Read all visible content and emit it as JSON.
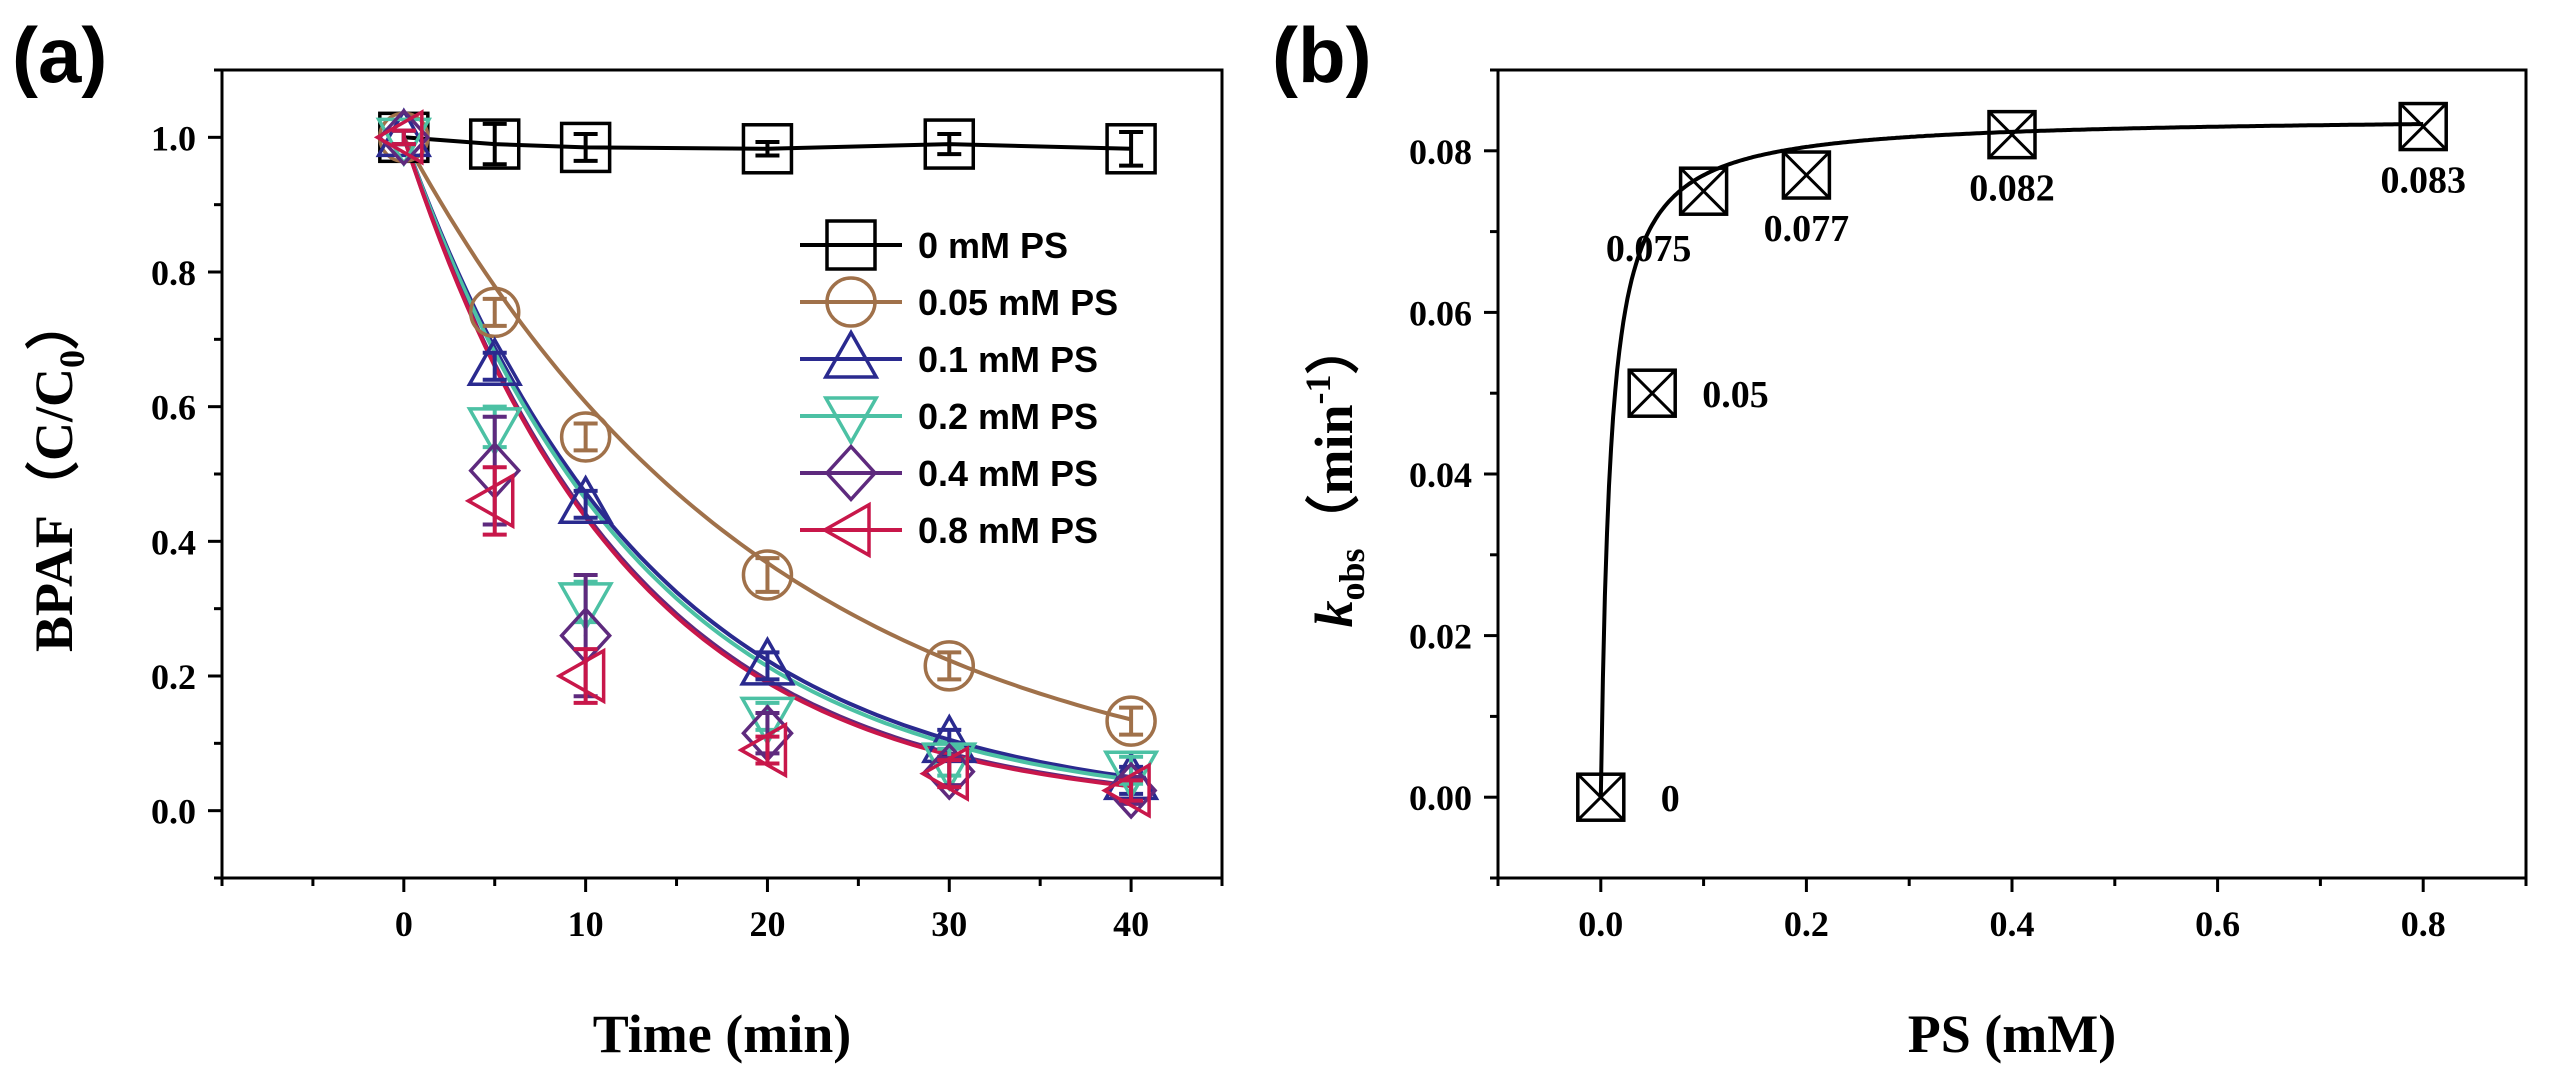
{
  "chart_data": [
    {
      "panel": "(a)",
      "type": "line",
      "xlabel": "Time (min)",
      "ylabel": "BPAF（C/C0）",
      "ylabel_parts": {
        "main": "BPAF（C/C",
        "sub": "0",
        "end": "）"
      },
      "xlim": [
        -10,
        45
      ],
      "ylim": [
        -0.1,
        1.1
      ],
      "xticks": [
        0,
        10,
        20,
        30,
        40
      ],
      "yticks": [
        0.0,
        0.2,
        0.4,
        0.6,
        0.8,
        1.0
      ],
      "xtick_labels": [
        "0",
        "10",
        "20",
        "30",
        "40"
      ],
      "ytick_labels": [
        "0.0",
        "0.2",
        "0.4",
        "0.6",
        "0.8",
        "1.0"
      ],
      "legend_position": "top-right",
      "x": [
        0,
        5,
        10,
        20,
        30,
        40
      ],
      "series": [
        {
          "name": "0 mM PS",
          "color": "#000000",
          "marker": "square",
          "k": 0.0,
          "values": [
            1.0,
            0.99,
            0.985,
            0.983,
            0.99,
            0.983
          ],
          "errors": [
            0.01,
            0.03,
            0.02,
            0.01,
            0.015,
            0.025
          ]
        },
        {
          "name": "0.05 mM PS",
          "color": "#A0714A",
          "marker": "circle",
          "k": 0.05,
          "values": [
            1.0,
            0.74,
            0.555,
            0.35,
            0.215,
            0.133
          ],
          "errors": [
            0.01,
            0.02,
            0.02,
            0.025,
            0.02,
            0.02
          ]
        },
        {
          "name": "0.1 mM PS",
          "color": "#2A2A8F",
          "marker": "triangle-up",
          "k": 0.075,
          "values": [
            1.0,
            0.66,
            0.455,
            0.215,
            0.1,
            0.045
          ],
          "errors": [
            0.01,
            0.02,
            0.02,
            0.02,
            0.02,
            0.02
          ]
        },
        {
          "name": "0.2 mM PS",
          "color": "#4CC1A4",
          "marker": "triangle-down",
          "k": 0.077,
          "values": [
            1.0,
            0.57,
            0.31,
            0.14,
            0.072,
            0.06
          ],
          "errors": [
            0.01,
            0.03,
            0.03,
            0.02,
            0.02,
            0.02
          ]
        },
        {
          "name": "0.4 mM PS",
          "color": "#5E2A7E",
          "marker": "diamond",
          "k": 0.082,
          "values": [
            1.0,
            0.505,
            0.26,
            0.115,
            0.058,
            0.03
          ],
          "errors": [
            0.01,
            0.08,
            0.09,
            0.03,
            0.02,
            0.02
          ]
        },
        {
          "name": "0.8 mM PS",
          "color": "#C8174A",
          "marker": "triangle-left",
          "k": 0.083,
          "values": [
            1.0,
            0.46,
            0.2,
            0.09,
            0.055,
            0.03
          ],
          "errors": [
            0.01,
            0.05,
            0.04,
            0.02,
            0.02,
            0.015
          ]
        }
      ]
    },
    {
      "panel": "(b)",
      "type": "scatter",
      "xlabel": "PS (mM)",
      "ylabel_parts": {
        "k": "k",
        "sub": "obs",
        "paren_open": "（",
        "unit": "min",
        "sup": "-1",
        "paren_close": "）"
      },
      "xlim": [
        -0.1,
        0.9
      ],
      "ylim": [
        -0.01,
        0.09
      ],
      "xticks": [
        0.0,
        0.2,
        0.4,
        0.6,
        0.8
      ],
      "yticks": [
        0.0,
        0.02,
        0.04,
        0.06,
        0.08
      ],
      "xtick_labels": [
        "0.0",
        "0.2",
        "0.4",
        "0.6",
        "0.8"
      ],
      "ytick_labels": [
        "0.00",
        "0.02",
        "0.04",
        "0.06",
        "0.08"
      ],
      "marker": "boxed-x",
      "color": "#000000",
      "x": [
        0,
        0.05,
        0.1,
        0.2,
        0.4,
        0.8
      ],
      "values": [
        0,
        0.05,
        0.075,
        0.077,
        0.082,
        0.083
      ],
      "point_labels": [
        "0",
        "0.05",
        "0.075",
        "0.077",
        "0.082",
        "0.083"
      ],
      "fit_curve": {
        "type": "saturation",
        "kmax": 0.0843,
        "half": 0.0095
      }
    }
  ]
}
